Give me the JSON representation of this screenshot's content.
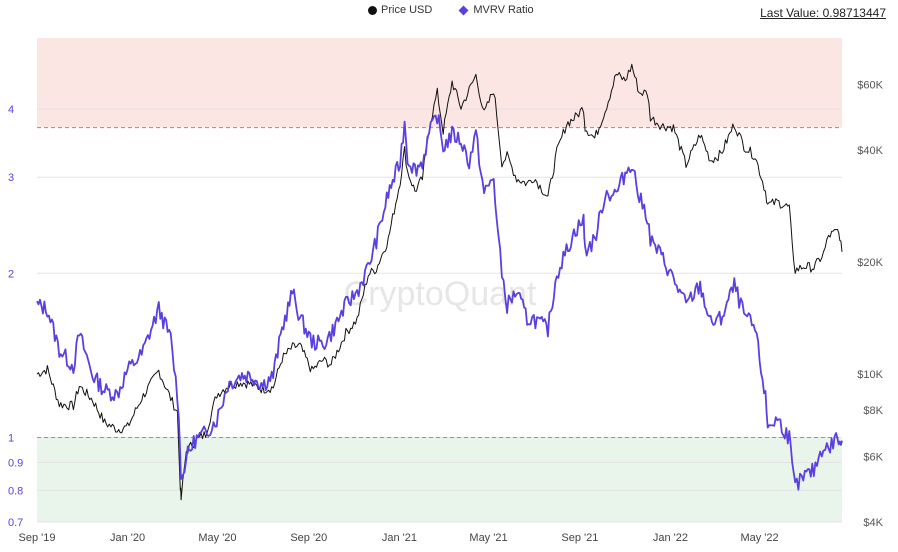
{
  "legend": {
    "price_label": "Price USD",
    "mvrv_label": "MVRV Ratio"
  },
  "last_value": "Last Value: 0.98713447",
  "watermark": "CryptoQuant",
  "colors": {
    "price": "#111111",
    "mvrv": "#5b3fe0",
    "upper_zone": "#fbe6e3",
    "lower_zone": "#e9f5ea",
    "upper_threshold": "#e0706a",
    "lower_threshold": "#77a877",
    "grid": "#e3e3e3"
  },
  "chart_data": {
    "type": "line",
    "x_scale": "date",
    "x_range": [
      "2019-09-01",
      "2022-08-20"
    ],
    "x_ticks": [
      "Sep '19",
      "Jan '20",
      "May '20",
      "Sep '20",
      "Jan '21",
      "May '21",
      "Sep '21",
      "Jan '22",
      "May '22"
    ],
    "x_tick_dates": [
      "2019-09-01",
      "2020-01-01",
      "2020-05-01",
      "2020-09-01",
      "2021-01-01",
      "2021-05-01",
      "2021-09-01",
      "2022-01-01",
      "2022-05-01"
    ],
    "y_left": {
      "scale": "log",
      "range": [
        0.7,
        5.4
      ],
      "ticks": [
        0.7,
        0.8,
        0.9,
        1,
        2,
        3,
        4
      ],
      "tick_labels": [
        "0.7",
        "0.8",
        "0.9",
        "1",
        "2",
        "3",
        "4"
      ]
    },
    "y_right": {
      "scale": "log",
      "range": [
        4000,
        80000
      ],
      "ticks": [
        4000,
        6000,
        8000,
        10000,
        20000,
        40000,
        60000
      ],
      "tick_labels": [
        "$4K",
        "$6K",
        "$8K",
        "$10K",
        "$20K",
        "$40K",
        "$60K"
      ]
    },
    "bands": [
      {
        "axis": "left",
        "from": 3.7,
        "to": 5.4
      },
      {
        "axis": "left",
        "from": 0.7,
        "to": 1.0
      }
    ],
    "thresholds": [
      3.7,
      1.0
    ],
    "series": [
      {
        "name": "MVRV Ratio",
        "axis": "left",
        "x": [
          "2019-09-01",
          "2019-09-15",
          "2019-10-01",
          "2019-10-20",
          "2019-10-28",
          "2019-11-15",
          "2019-12-01",
          "2019-12-18",
          "2020-01-01",
          "2020-01-20",
          "2020-02-12",
          "2020-02-28",
          "2020-03-08",
          "2020-03-12",
          "2020-03-13",
          "2020-03-20",
          "2020-04-01",
          "2020-04-15",
          "2020-04-30",
          "2020-05-15",
          "2020-06-01",
          "2020-06-15",
          "2020-07-01",
          "2020-07-15",
          "2020-07-27",
          "2020-08-10",
          "2020-08-20",
          "2020-09-05",
          "2020-09-20",
          "2020-10-01",
          "2020-10-21",
          "2020-11-05",
          "2020-11-20",
          "2020-12-01",
          "2020-12-17",
          "2021-01-02",
          "2021-01-08",
          "2021-01-12",
          "2021-01-22",
          "2021-02-01",
          "2021-02-10",
          "2021-02-21",
          "2021-03-01",
          "2021-03-13",
          "2021-03-25",
          "2021-04-05",
          "2021-04-14",
          "2021-04-25",
          "2021-05-08",
          "2021-05-12",
          "2021-05-19",
          "2021-05-26",
          "2021-06-08",
          "2021-06-22",
          "2021-07-01",
          "2021-07-20",
          "2021-08-01",
          "2021-08-14",
          "2021-08-26",
          "2021-09-06",
          "2021-09-08",
          "2021-09-21",
          "2021-10-05",
          "2021-10-20",
          "2021-11-01",
          "2021-11-10",
          "2021-11-20",
          "2021-12-01",
          "2021-12-05",
          "2021-12-20",
          "2022-01-05",
          "2022-01-22",
          "2022-02-10",
          "2022-02-24",
          "2022-03-10",
          "2022-03-28",
          "2022-04-10",
          "2022-04-25",
          "2022-05-09",
          "2022-05-12",
          "2022-05-25",
          "2022-06-10",
          "2022-06-14",
          "2022-06-18",
          "2022-07-01",
          "2022-07-13",
          "2022-07-26",
          "2022-08-02",
          "2022-08-14",
          "2022-08-17",
          "2022-08-20"
        ],
        "y": [
          1.75,
          1.72,
          1.45,
          1.35,
          1.55,
          1.3,
          1.22,
          1.2,
          1.33,
          1.42,
          1.72,
          1.52,
          1.2,
          0.95,
          0.83,
          0.92,
          0.99,
          1.02,
          1.08,
          1.25,
          1.3,
          1.3,
          1.25,
          1.3,
          1.58,
          1.85,
          1.66,
          1.5,
          1.48,
          1.55,
          1.75,
          1.85,
          2.05,
          2.3,
          2.8,
          3.2,
          3.8,
          3.25,
          3.1,
          3.2,
          3.6,
          3.9,
          3.4,
          3.6,
          3.5,
          3.2,
          3.6,
          2.8,
          3.0,
          2.5,
          2.0,
          1.75,
          1.85,
          1.65,
          1.65,
          1.58,
          2.0,
          2.2,
          2.4,
          2.5,
          2.2,
          2.3,
          2.8,
          2.8,
          3.05,
          3.2,
          2.75,
          2.55,
          2.3,
          2.15,
          1.95,
          1.75,
          1.9,
          1.62,
          1.65,
          1.9,
          1.68,
          1.58,
          1.18,
          1.05,
          1.08,
          1.0,
          0.88,
          0.81,
          0.85,
          0.87,
          0.97,
          0.95,
          1.01,
          0.96,
          0.987
        ]
      },
      {
        "name": "Price USD",
        "axis": "right",
        "x": [
          "2019-09-01",
          "2019-09-15",
          "2019-10-01",
          "2019-10-20",
          "2019-10-28",
          "2019-11-15",
          "2019-12-01",
          "2019-12-18",
          "2020-01-01",
          "2020-01-20",
          "2020-02-12",
          "2020-02-28",
          "2020-03-08",
          "2020-03-12",
          "2020-03-13",
          "2020-03-20",
          "2020-04-01",
          "2020-04-15",
          "2020-04-30",
          "2020-05-15",
          "2020-06-01",
          "2020-06-15",
          "2020-07-01",
          "2020-07-15",
          "2020-07-27",
          "2020-08-10",
          "2020-08-20",
          "2020-09-05",
          "2020-09-20",
          "2020-10-01",
          "2020-10-21",
          "2020-11-05",
          "2020-11-20",
          "2020-12-01",
          "2020-12-17",
          "2021-01-02",
          "2021-01-08",
          "2021-01-12",
          "2021-01-22",
          "2021-02-01",
          "2021-02-10",
          "2021-02-21",
          "2021-03-01",
          "2021-03-13",
          "2021-03-25",
          "2021-04-05",
          "2021-04-14",
          "2021-04-25",
          "2021-05-08",
          "2021-05-12",
          "2021-05-19",
          "2021-05-26",
          "2021-06-08",
          "2021-06-22",
          "2021-07-01",
          "2021-07-20",
          "2021-08-01",
          "2021-08-14",
          "2021-08-26",
          "2021-09-06",
          "2021-09-08",
          "2021-09-21",
          "2021-10-05",
          "2021-10-20",
          "2021-11-01",
          "2021-11-10",
          "2021-11-20",
          "2021-12-01",
          "2021-12-05",
          "2021-12-20",
          "2022-01-05",
          "2022-01-22",
          "2022-02-10",
          "2022-02-24",
          "2022-03-10",
          "2022-03-28",
          "2022-04-10",
          "2022-04-25",
          "2022-05-09",
          "2022-05-12",
          "2022-05-25",
          "2022-06-10",
          "2022-06-14",
          "2022-06-18",
          "2022-07-01",
          "2022-07-13",
          "2022-07-26",
          "2022-08-02",
          "2022-08-14",
          "2022-08-17",
          "2022-08-20"
        ],
        "y": [
          10000,
          10300,
          8300,
          8200,
          9300,
          8500,
          7400,
          7100,
          7200,
          8600,
          10200,
          8600,
          7900,
          5000,
          4600,
          6200,
          6600,
          6900,
          8800,
          9300,
          9500,
          9400,
          9100,
          9200,
          11000,
          11800,
          11900,
          10200,
          10900,
          10600,
          12900,
          14000,
          18500,
          19200,
          23000,
          33000,
          40000,
          35000,
          31000,
          33500,
          46000,
          57000,
          45000,
          61000,
          52000,
          58000,
          63500,
          50000,
          58000,
          50000,
          37000,
          38500,
          33500,
          32500,
          33800,
          29800,
          39500,
          47000,
          49000,
          52000,
          46000,
          43000,
          51000,
          64000,
          61500,
          67500,
          57000,
          57000,
          49000,
          46500,
          46000,
          36500,
          44000,
          37500,
          39000,
          47000,
          41000,
          38500,
          31000,
          28500,
          29000,
          28000,
          22000,
          19000,
          19500,
          19300,
          21000,
          23500,
          24200,
          23500,
          21300
        ]
      }
    ]
  }
}
